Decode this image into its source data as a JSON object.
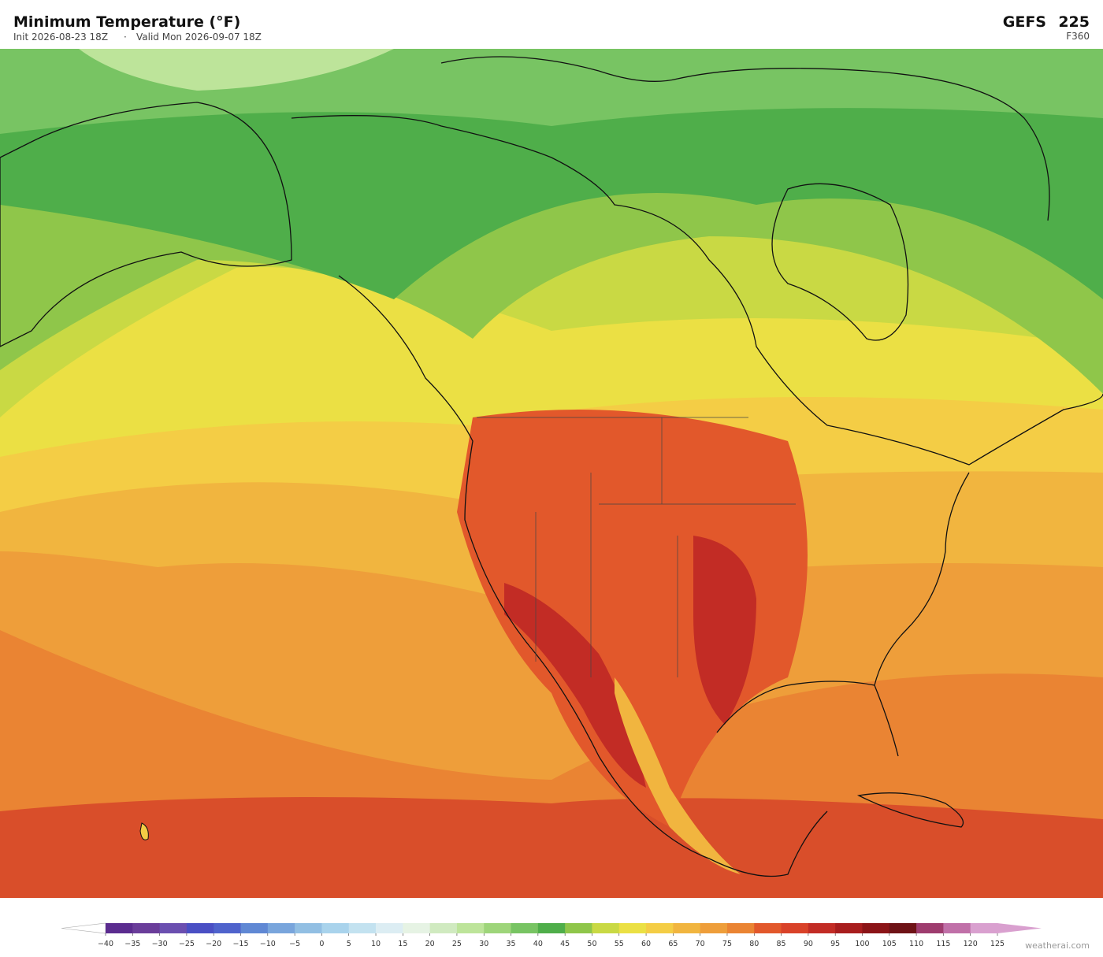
{
  "header": {
    "title": "Minimum Temperature  (°F)",
    "init": "Init 2026-08-23 18Z",
    "separator": "·",
    "valid": "Valid Mon 2026-09-07 18Z",
    "model": "GEFS",
    "member": "225",
    "forecast_hour": "F360"
  },
  "colorbar": {
    "ticks": [
      {
        "value": -40,
        "label": "−40"
      },
      {
        "value": -35,
        "label": "−35"
      },
      {
        "value": -30,
        "label": "−30"
      },
      {
        "value": -25,
        "label": "−25"
      },
      {
        "value": -20,
        "label": "−20"
      },
      {
        "value": -15,
        "label": "−15"
      },
      {
        "value": -10,
        "label": "−10"
      },
      {
        "value": -5,
        "label": "−5"
      },
      0,
      5,
      10,
      15,
      20,
      25,
      30,
      35,
      40,
      45,
      50,
      55,
      60,
      65,
      70,
      75,
      80,
      85,
      90,
      95,
      100,
      105,
      110,
      115,
      120,
      125
    ],
    "colors": [
      "#5b2c8f",
      "#6a3d9a",
      "#6b4fb0",
      "#4a4fc4",
      "#4f63cc",
      "#6088d4",
      "#79a5dc",
      "#92bfe3",
      "#a9d3ec",
      "#c3e2f0",
      "#dcedf3",
      "#e6f3e4",
      "#d0eac0",
      "#bde49a",
      "#9ed57a",
      "#78c463",
      "#4fae4a",
      "#8fc64a",
      "#c9d944",
      "#ebe044",
      "#f4cd45",
      "#f1b53f",
      "#ee9e3a",
      "#ea8433",
      "#e2582b",
      "#d94229",
      "#c22c25",
      "#a81d1e",
      "#8b1417",
      "#6e1216",
      "#9e3c6e",
      "#c070a8",
      "#d9a0cf"
    ],
    "under_color": "#ffffff",
    "over_color": "#d9a0cf"
  },
  "footer": {
    "credit": "weatherai.com"
  }
}
